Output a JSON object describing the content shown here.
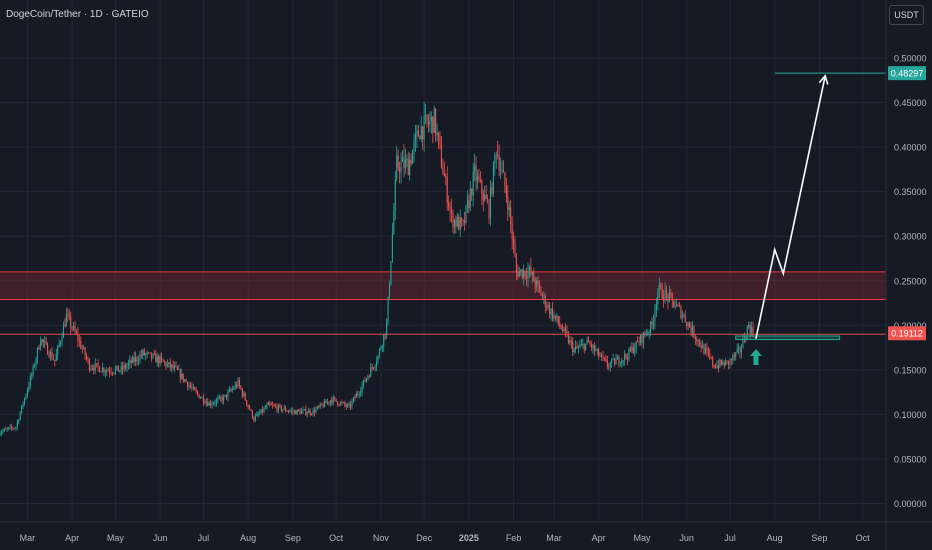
{
  "header": {
    "title": "DogeCoin/Tether · 1D · GATEIO",
    "unit": "USDT"
  },
  "colors": {
    "background": "#161a25",
    "grid": "#232735",
    "up": "#26a69a",
    "down": "#ef5350",
    "axis_text": "#b2b5be",
    "resistance_zone": "#f23645",
    "support_zone": "#22ab94",
    "projection": "#ffffff"
  },
  "chart_data": {
    "type": "candlestick",
    "symbol": "DogeCoin/Tether",
    "interval": "1D",
    "exchange": "GATEIO",
    "y_unit": "USDT",
    "ylim": [
      -0.03,
      0.56
    ],
    "y_ticks": [
      "0.50000",
      "0.45000",
      "0.40000",
      "0.35000",
      "0.30000",
      "0.25000",
      "0.20000",
      "0.15000",
      "0.10000",
      "0.05000",
      "0.00000"
    ],
    "y_tick_values": [
      0.5,
      0.45,
      0.4,
      0.35,
      0.3,
      0.25,
      0.2,
      0.15,
      0.1,
      0.05,
      0.0
    ],
    "x_ticks": [
      "Mar",
      "Apr",
      "May",
      "Jun",
      "Jul",
      "Aug",
      "Sep",
      "Oct",
      "Nov",
      "Dec",
      "2025",
      "Feb",
      "Mar",
      "Apr",
      "May",
      "Jun",
      "Jul",
      "Aug",
      "Sep",
      "Oct"
    ],
    "x_tick_dates": [
      "2024-03-01",
      "2024-04-01",
      "2024-05-01",
      "2024-06-01",
      "2024-07-01",
      "2024-08-01",
      "2024-09-01",
      "2024-10-01",
      "2024-11-01",
      "2024-12-01",
      "2025-01-01",
      "2025-02-01",
      "2025-03-01",
      "2025-04-01",
      "2025-05-01",
      "2025-06-01",
      "2025-07-01",
      "2025-08-01",
      "2025-09-01",
      "2025-10-01"
    ],
    "price_path": [
      [
        "2024-02-10",
        0.08
      ],
      [
        "2024-02-22",
        0.086
      ],
      [
        "2024-03-05",
        0.15
      ],
      [
        "2024-03-10",
        0.185
      ],
      [
        "2024-03-20",
        0.16
      ],
      [
        "2024-03-28",
        0.21
      ],
      [
        "2024-04-05",
        0.185
      ],
      [
        "2024-04-13",
        0.155
      ],
      [
        "2024-04-25",
        0.15
      ],
      [
        "2024-05-05",
        0.15
      ],
      [
        "2024-05-20",
        0.168
      ],
      [
        "2024-05-30",
        0.162
      ],
      [
        "2024-06-12",
        0.15
      ],
      [
        "2024-06-25",
        0.125
      ],
      [
        "2024-07-05",
        0.112
      ],
      [
        "2024-07-15",
        0.118
      ],
      [
        "2024-07-25",
        0.135
      ],
      [
        "2024-08-05",
        0.095
      ],
      [
        "2024-08-15",
        0.11
      ],
      [
        "2024-09-01",
        0.103
      ],
      [
        "2024-09-15",
        0.103
      ],
      [
        "2024-09-28",
        0.117
      ],
      [
        "2024-10-10",
        0.108
      ],
      [
        "2024-10-20",
        0.135
      ],
      [
        "2024-10-30",
        0.165
      ],
      [
        "2024-11-05",
        0.2
      ],
      [
        "2024-11-12",
        0.38
      ],
      [
        "2024-11-20",
        0.38
      ],
      [
        "2024-11-28",
        0.42
      ],
      [
        "2024-12-08",
        0.43
      ],
      [
        "2024-12-20",
        0.32
      ],
      [
        "2024-12-28",
        0.31
      ],
      [
        "2025-01-05",
        0.37
      ],
      [
        "2025-01-15",
        0.33
      ],
      [
        "2025-01-20",
        0.4
      ],
      [
        "2025-01-28",
        0.34
      ],
      [
        "2025-02-03",
        0.26
      ],
      [
        "2025-02-12",
        0.26
      ],
      [
        "2025-02-25",
        0.22
      ],
      [
        "2025-03-05",
        0.2
      ],
      [
        "2025-03-15",
        0.172
      ],
      [
        "2025-03-25",
        0.18
      ],
      [
        "2025-04-07",
        0.155
      ],
      [
        "2025-04-20",
        0.165
      ],
      [
        "2025-04-28",
        0.18
      ],
      [
        "2025-05-08",
        0.2
      ],
      [
        "2025-05-12",
        0.24
      ],
      [
        "2025-05-20",
        0.23
      ],
      [
        "2025-05-28",
        0.215
      ],
      [
        "2025-06-10",
        0.18
      ],
      [
        "2025-06-20",
        0.155
      ],
      [
        "2025-06-30",
        0.158
      ],
      [
        "2025-07-08",
        0.172
      ],
      [
        "2025-07-14",
        0.2
      ],
      [
        "2025-07-17",
        0.191
      ]
    ],
    "zones": [
      {
        "type": "resistance",
        "low": 0.229,
        "high": 0.26
      },
      {
        "type": "support",
        "low": 0.184,
        "high": 0.188,
        "start": "2025-07-05",
        "end": "2025-09-15"
      }
    ],
    "reference_line": {
      "price": 0.19
    },
    "projection_path": [
      [
        "2025-07-19",
        0.185
      ],
      [
        "2025-08-01",
        0.285
      ],
      [
        "2025-08-07",
        0.258
      ],
      [
        "2025-09-05",
        0.48
      ]
    ],
    "target_line": {
      "price": 0.48297,
      "start": "2025-08-01",
      "end": "2025-10-15"
    },
    "price_labels": [
      {
        "text": "0.48297",
        "price": 0.48297,
        "color": "#26a69a"
      },
      {
        "text": "0.19112",
        "price": 0.19112,
        "color": "#ef5350"
      }
    ],
    "marker": {
      "icon": "up-arrow",
      "date": "2025-07-19",
      "price": 0.16,
      "color": "#22ab94"
    }
  }
}
